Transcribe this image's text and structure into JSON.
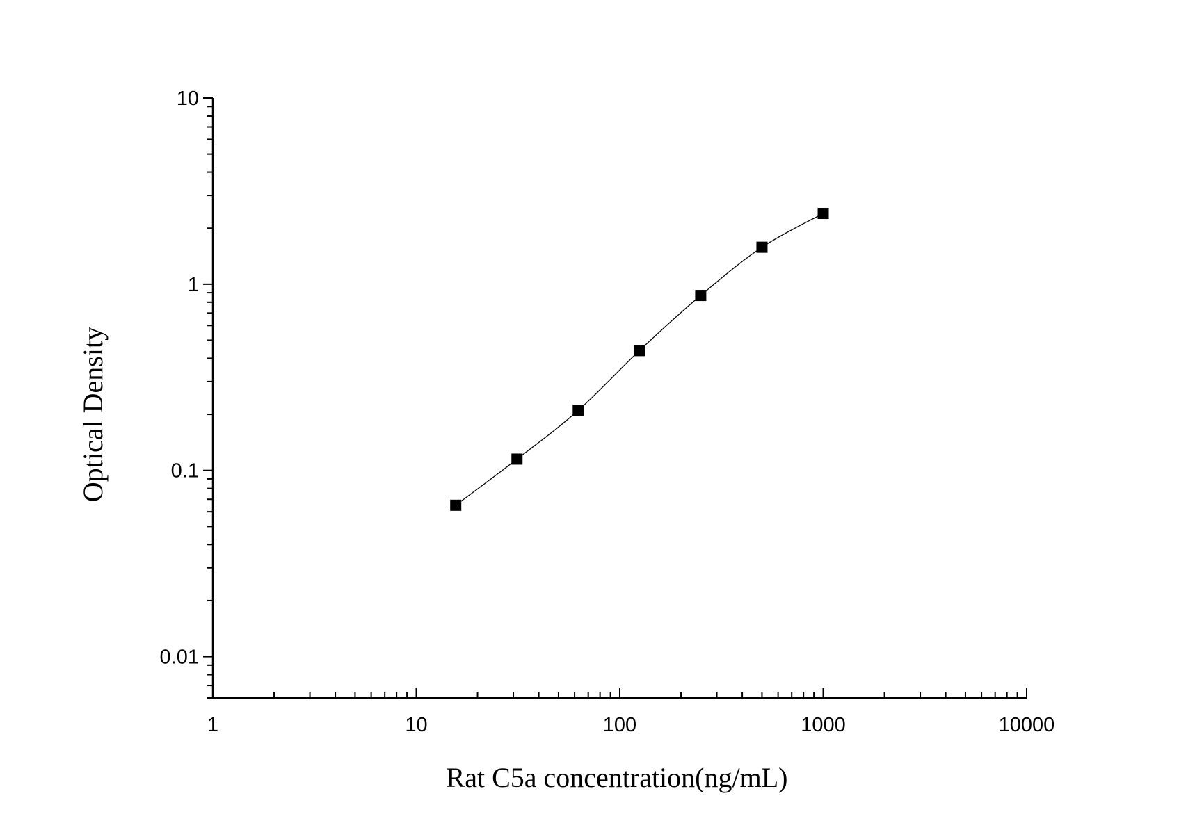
{
  "chart_data": {
    "type": "scatter",
    "title": "",
    "xlabel": "Rat C5a concentration(ng/mL)",
    "ylabel": "Optical Density",
    "x_scale": "log",
    "y_scale": "log",
    "xlim": [
      1,
      10000
    ],
    "ylim": [
      0.006,
      10
    ],
    "x_ticks": [
      {
        "value": 1,
        "label": "1"
      },
      {
        "value": 10,
        "label": "10"
      },
      {
        "value": 100,
        "label": "100"
      },
      {
        "value": 1000,
        "label": "1000"
      },
      {
        "value": 10000,
        "label": "10000"
      }
    ],
    "y_ticks": [
      {
        "value": 0.01,
        "label": "0.01"
      },
      {
        "value": 0.1,
        "label": "0.1"
      },
      {
        "value": 1,
        "label": "1"
      },
      {
        "value": 10,
        "label": "10"
      }
    ],
    "grid": false,
    "legend": "none",
    "series": [
      {
        "marker": "square",
        "color": "#000000",
        "fit_line": true,
        "x": [
          15.625,
          31.25,
          62.5,
          125,
          250,
          500,
          1000
        ],
        "y": [
          0.065,
          0.115,
          0.21,
          0.44,
          0.87,
          1.58,
          2.4
        ]
      }
    ]
  }
}
